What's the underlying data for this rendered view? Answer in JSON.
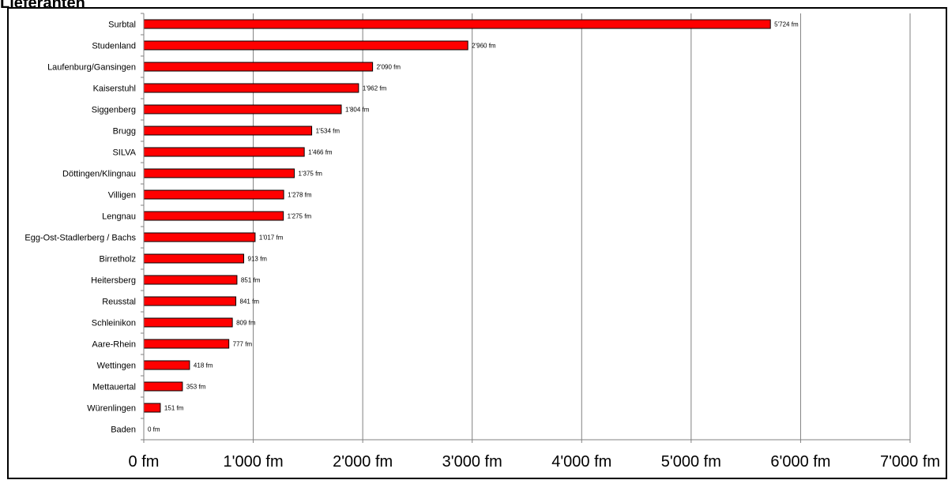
{
  "page_title": "Lieferanten",
  "chart_data": {
    "type": "bar",
    "orientation": "horizontal",
    "title": "",
    "xlabel": "",
    "ylabel": "",
    "categories": [
      "Surbtal",
      "Studenland",
      "Laufenburg/Gansingen",
      "Kaiserstuhl",
      "Siggenberg",
      "Brugg",
      "SILVA",
      "Döttingen/Klingnau",
      "Villigen",
      "Lengnau",
      "Egg-Ost-Stadlerberg / Bachs",
      "Birretholz",
      "Heitersberg",
      "Reusstal",
      "Schleinikon",
      "Aare-Rhein",
      "Wettingen",
      "Mettauertal",
      "Würenlingen",
      "Baden"
    ],
    "values": [
      5724,
      2960,
      2090,
      1962,
      1804,
      1534,
      1466,
      1375,
      1278,
      1275,
      1017,
      913,
      851,
      841,
      809,
      777,
      418,
      353,
      151,
      0
    ],
    "value_labels": [
      "5'724 fm",
      "2'960 fm",
      "2'090 fm",
      "1'962 fm",
      "1'804 fm",
      "1'534 fm",
      "1'466 fm",
      "1'375 fm",
      "1'278 fm",
      "1'275 fm",
      "1'017 fm",
      "913 fm",
      "851 fm",
      "841 fm",
      "809 fm",
      "777 fm",
      "418 fm",
      "353 fm",
      "151 fm",
      "0 fm"
    ],
    "xlim": [
      0,
      7000
    ],
    "xticks": [
      0,
      1000,
      2000,
      3000,
      4000,
      5000,
      6000,
      7000
    ],
    "xtick_labels": [
      "0 fm",
      "1'000 fm",
      "2'000 fm",
      "3'000 fm",
      "4'000 fm",
      "5'000 fm",
      "6'000 fm",
      "7'000 fm"
    ],
    "grid": "vertical",
    "legend": "none",
    "bar_color": "#ff0000",
    "bar_edge_color": "#000000",
    "grid_color": "#808080"
  }
}
